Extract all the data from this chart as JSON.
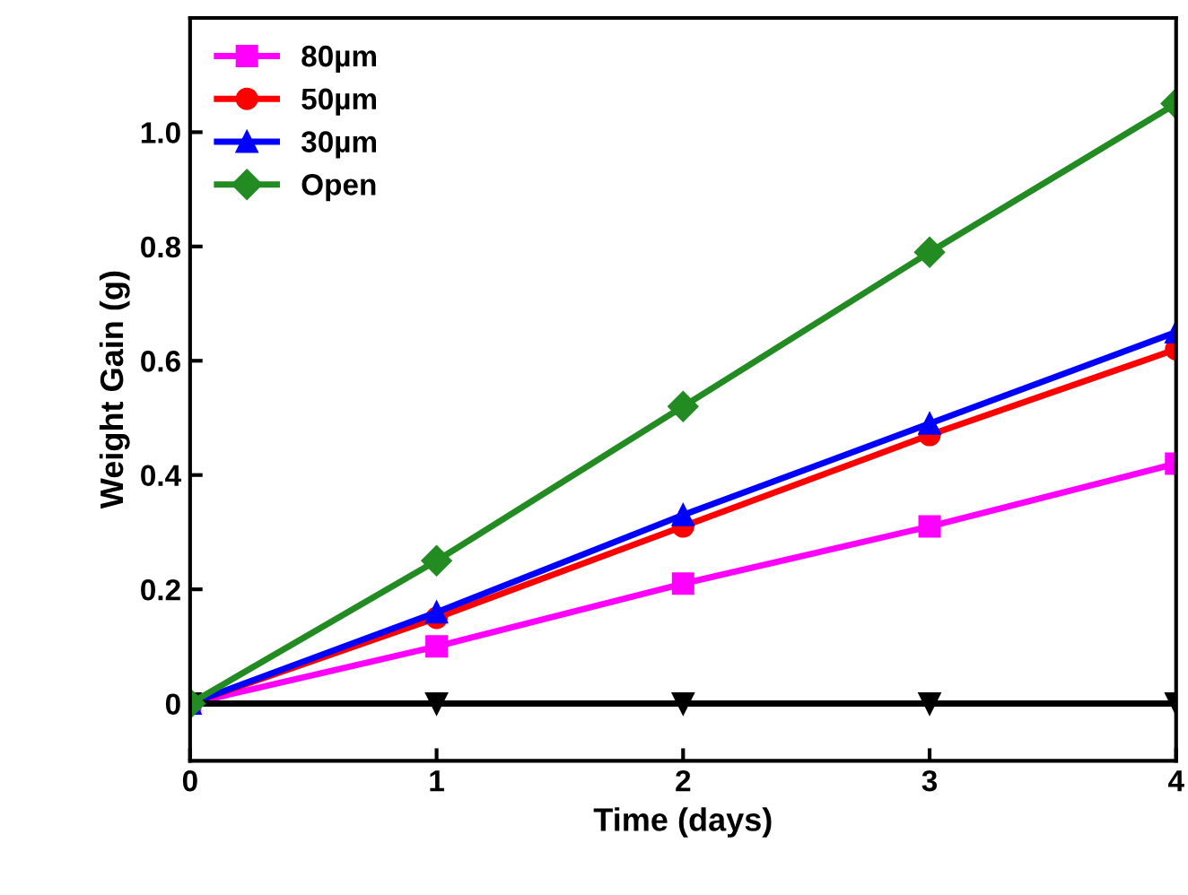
{
  "chart_data": {
    "type": "line",
    "xlabel": "Time (days)",
    "ylabel": "Weight Gain (g)",
    "x": [
      0,
      1,
      2,
      3,
      4
    ],
    "xlim": [
      0,
      4
    ],
    "xticks": [
      0,
      1,
      2,
      3,
      4
    ],
    "ylim": [
      -0.1,
      1.2
    ],
    "yticks": [
      0,
      0.2,
      0.4,
      0.6,
      0.8,
      {
        "value": 1.0,
        "label": "1.0"
      }
    ],
    "grid": false,
    "legend": "top left",
    "series": [
      {
        "name": "80µm",
        "color": "#ff00ff",
        "marker": "square",
        "values": [
          0,
          0.1,
          0.21,
          0.31,
          0.42
        ]
      },
      {
        "name": "50µm",
        "color": "#ff0000",
        "marker": "circle",
        "values": [
          0,
          0.15,
          0.31,
          0.47,
          0.62
        ]
      },
      {
        "name": "30µm",
        "color": "#0000ff",
        "marker": "triangle",
        "values": [
          0,
          0.16,
          0.33,
          0.49,
          0.65
        ]
      },
      {
        "color": "#000000",
        "marker": "triangle_down",
        "values": [
          0,
          0,
          0,
          0,
          0
        ]
      },
      {
        "name": "Open",
        "color": "#228b22",
        "marker": "diamond",
        "values": [
          0,
          0.25,
          0.52,
          0.79,
          1.05
        ]
      }
    ]
  }
}
